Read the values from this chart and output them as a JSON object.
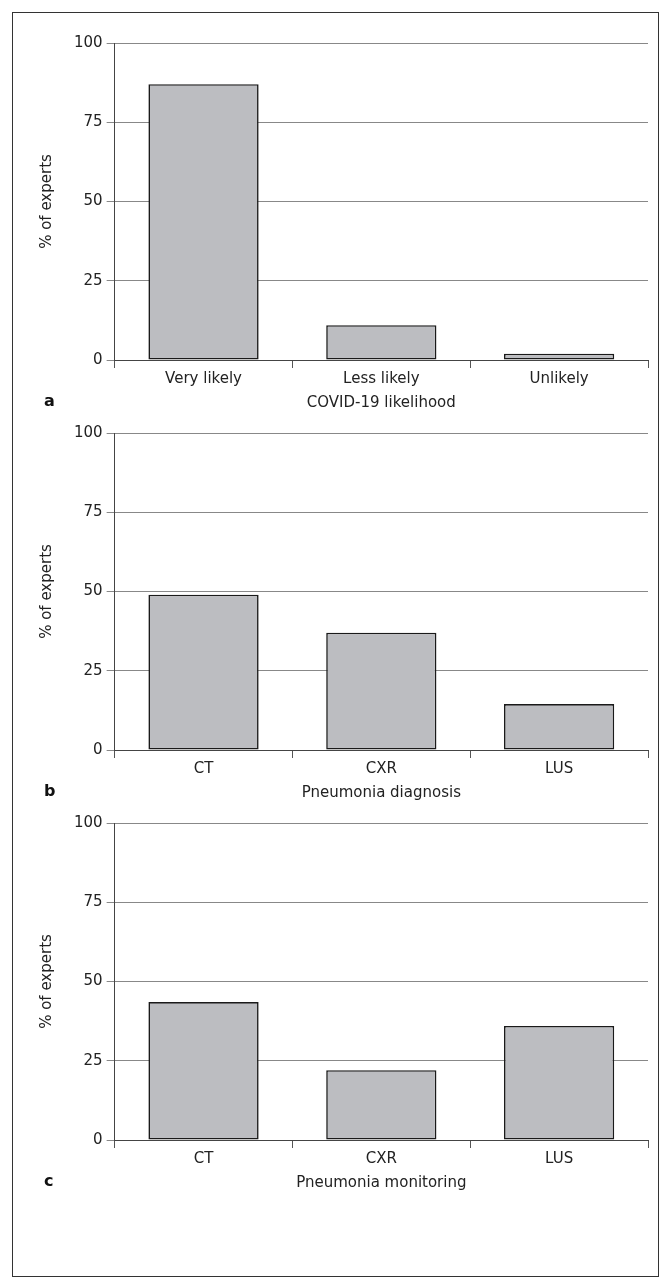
{
  "chart_data": [
    {
      "type": "bar",
      "xlabel": "COVID-19 likelihood",
      "ylabel": "% of experts",
      "categories": [
        "Very likely",
        "Less likely",
        "Unlikely"
      ],
      "values": [
        87,
        11,
        2
      ],
      "color": "#bcbdc1",
      "ylim": [
        0,
        100
      ],
      "yticks": [
        0,
        25,
        50,
        75,
        100
      ],
      "grid": "y",
      "annotations": [
        "a"
      ]
    },
    {
      "type": "bar",
      "xlabel": "Pneumonia diagnosis",
      "ylabel": "% of experts",
      "categories": [
        "CT",
        "CXR",
        "LUS"
      ],
      "values": [
        49,
        37,
        14.5
      ],
      "color": "#bcbdc1",
      "ylim": [
        0,
        100
      ],
      "yticks": [
        0,
        25,
        50,
        75,
        100
      ],
      "grid": "y",
      "annotations": [
        "b"
      ]
    },
    {
      "type": "bar",
      "xlabel": "Pneumonia monitoring",
      "ylabel": "% of experts",
      "categories": [
        "CT",
        "CXR",
        "LUS"
      ],
      "values": [
        43.5,
        22,
        36
      ],
      "color": "#bcbdc1",
      "ylim": [
        0,
        100
      ],
      "yticks": [
        0,
        25,
        50,
        75,
        100
      ],
      "grid": "y",
      "annotations": [
        "c"
      ]
    }
  ]
}
